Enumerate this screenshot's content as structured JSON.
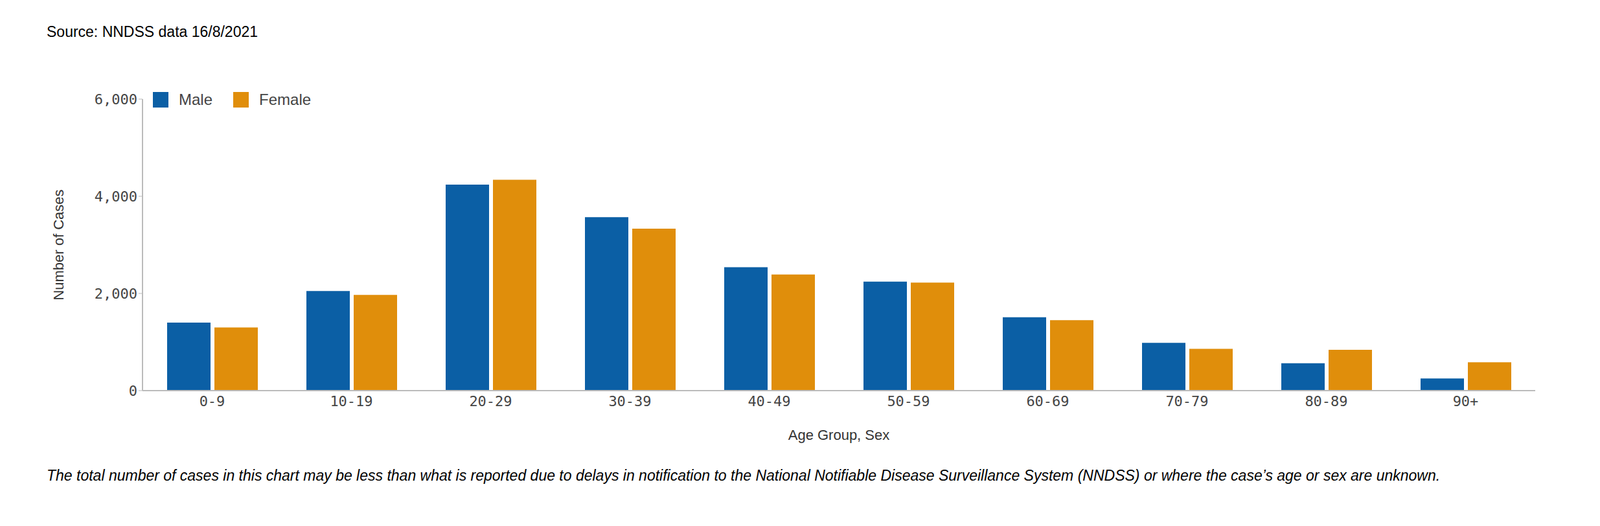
{
  "chart_data": {
    "type": "bar",
    "source": "Source: NNDSS data 16/8/2021",
    "footnote": "The total number of cases in this chart may be less than what is reported due to delays in notification to the National Notifiable Disease Surveillance System (NNDSS) or where the case’s age or sex are unknown.",
    "x_label": "Age Group, Sex",
    "y_label": "Number of Cases",
    "categories": [
      "0-9",
      "10-19",
      "20-29",
      "30-39",
      "40-49",
      "50-59",
      "60-69",
      "70-79",
      "80-89",
      "90+"
    ],
    "series": [
      {
        "name": "Male",
        "color": "#0b5fa5",
        "values": [
          1400,
          2050,
          4240,
          3570,
          2540,
          2245,
          1510,
          985,
          565,
          250
        ]
      },
      {
        "name": "Female",
        "color": "#e08e0b",
        "values": [
          1300,
          1970,
          4340,
          3335,
          2390,
          2225,
          1450,
          860,
          840,
          585
        ]
      }
    ],
    "ylim": [
      0,
      6000
    ],
    "yticks": [
      0,
      {
        "value": 2000,
        "label": "2,000"
      },
      {
        "value": 4000,
        "label": "4,000"
      },
      {
        "value": 6000,
        "label": "6,000"
      }
    ],
    "grid": false,
    "legend": "upper left"
  }
}
